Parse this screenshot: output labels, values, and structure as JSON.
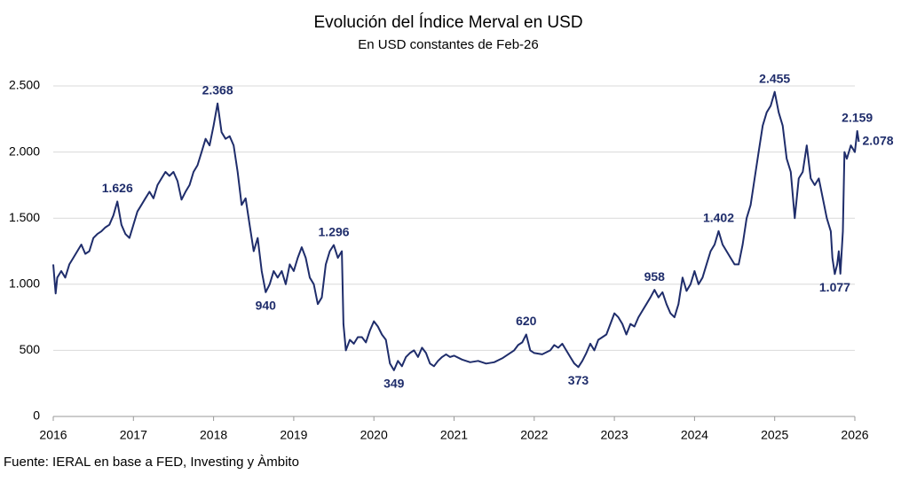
{
  "chart_data": {
    "type": "line",
    "title": "Evolución del Índice Merval en USD",
    "subtitle": "En USD constantes de Feb-26",
    "source": "Fuente: IERAL en base a FED, Investing y Àmbito",
    "xlim": [
      2016,
      2026
    ],
    "xticks": [
      2016,
      2017,
      2018,
      2019,
      2020,
      2021,
      2022,
      2023,
      2024,
      2025,
      2026
    ],
    "ylim": [
      0,
      2500
    ],
    "yticks": [
      0,
      500,
      {
        "value": 1000,
        "label": "1.000"
      },
      {
        "value": 1500,
        "label": "1.500"
      },
      {
        "value": 2000,
        "label": "2.000"
      },
      {
        "value": 2500,
        "label": "2.500"
      }
    ],
    "grid": true,
    "x": [
      2016.0,
      2016.03,
      2016.05,
      2016.1,
      2016.15,
      2016.2,
      2016.25,
      2016.3,
      2016.35,
      2016.4,
      2016.45,
      2016.5,
      2016.55,
      2016.6,
      2016.65,
      2016.7,
      2016.75,
      2016.8,
      2016.85,
      2016.9,
      2016.95,
      2017.0,
      2017.05,
      2017.1,
      2017.15,
      2017.2,
      2017.25,
      2017.3,
      2017.35,
      2017.4,
      2017.45,
      2017.5,
      2017.55,
      2017.6,
      2017.65,
      2017.7,
      2017.75,
      2017.8,
      2017.85,
      2017.9,
      2017.95,
      2018.0,
      2018.05,
      2018.1,
      2018.15,
      2018.2,
      2018.25,
      2018.3,
      2018.35,
      2018.4,
      2018.45,
      2018.5,
      2018.55,
      2018.6,
      2018.65,
      2018.7,
      2018.75,
      2018.8,
      2018.85,
      2018.9,
      2018.95,
      2019.0,
      2019.05,
      2019.1,
      2019.15,
      2019.2,
      2019.25,
      2019.3,
      2019.35,
      2019.4,
      2019.45,
      2019.5,
      2019.55,
      2019.6,
      2019.62,
      2019.65,
      2019.7,
      2019.75,
      2019.8,
      2019.85,
      2019.9,
      2019.95,
      2020.0,
      2020.05,
      2020.1,
      2020.15,
      2020.2,
      2020.25,
      2020.3,
      2020.35,
      2020.4,
      2020.45,
      2020.5,
      2020.55,
      2020.6,
      2020.65,
      2020.7,
      2020.75,
      2020.8,
      2020.85,
      2020.9,
      2020.95,
      2021.0,
      2021.1,
      2021.2,
      2021.3,
      2021.4,
      2021.5,
      2021.6,
      2021.7,
      2021.75,
      2021.8,
      2021.85,
      2021.9,
      2021.95,
      2022.0,
      2022.1,
      2022.2,
      2022.25,
      2022.3,
      2022.35,
      2022.4,
      2022.45,
      2022.5,
      2022.55,
      2022.6,
      2022.65,
      2022.7,
      2022.75,
      2022.8,
      2022.85,
      2022.9,
      2022.95,
      2023.0,
      2023.05,
      2023.1,
      2023.15,
      2023.2,
      2023.25,
      2023.3,
      2023.35,
      2023.4,
      2023.45,
      2023.5,
      2023.55,
      2023.6,
      2023.65,
      2023.7,
      2023.75,
      2023.8,
      2023.85,
      2023.9,
      2023.95,
      2024.0,
      2024.05,
      2024.1,
      2024.15,
      2024.2,
      2024.25,
      2024.3,
      2024.35,
      2024.4,
      2024.45,
      2024.5,
      2024.55,
      2024.6,
      2024.65,
      2024.7,
      2024.75,
      2024.8,
      2024.85,
      2024.9,
      2024.95,
      2025.0,
      2025.05,
      2025.1,
      2025.15,
      2025.2,
      2025.25,
      2025.3,
      2025.35,
      2025.4,
      2025.45,
      2025.5,
      2025.55,
      2025.6,
      2025.65,
      2025.7,
      2025.72,
      2025.75,
      2025.78,
      2025.8,
      2025.82,
      2025.85,
      2025.87,
      2025.9,
      2025.95,
      2026.0,
      2026.03,
      2026.05
    ],
    "series": [
      {
        "color": "#1f2d6b",
        "values": [
          1150,
          930,
          1050,
          1100,
          1050,
          1150,
          1200,
          1250,
          1300,
          1230,
          1250,
          1350,
          1380,
          1400,
          1430,
          1450,
          1520,
          1626,
          1450,
          1380,
          1350,
          1450,
          1550,
          1600,
          1650,
          1700,
          1650,
          1750,
          1800,
          1850,
          1820,
          1850,
          1780,
          1640,
          1700,
          1750,
          1850,
          1900,
          2000,
          2100,
          2050,
          2200,
          2368,
          2150,
          2100,
          2120,
          2050,
          1850,
          1600,
          1650,
          1450,
          1250,
          1350,
          1100,
          940,
          1000,
          1100,
          1050,
          1100,
          1000,
          1150,
          1100,
          1200,
          1280,
          1200,
          1050,
          1000,
          850,
          900,
          1150,
          1250,
          1296,
          1200,
          1250,
          700,
          500,
          580,
          550,
          600,
          600,
          560,
          650,
          720,
          680,
          620,
          580,
          400,
          349,
          420,
          380,
          450,
          480,
          500,
          450,
          520,
          480,
          400,
          380,
          420,
          450,
          470,
          450,
          460,
          430,
          410,
          420,
          400,
          410,
          440,
          480,
          500,
          540,
          560,
          620,
          500,
          480,
          470,
          500,
          540,
          520,
          550,
          500,
          450,
          400,
          373,
          420,
          480,
          550,
          500,
          580,
          600,
          620,
          700,
          780,
          750,
          700,
          620,
          700,
          680,
          750,
          800,
          850,
          900,
          958,
          900,
          940,
          850,
          780,
          750,
          850,
          1050,
          950,
          1000,
          1100,
          1000,
          1050,
          1150,
          1250,
          1300,
          1402,
          1300,
          1250,
          1200,
          1150,
          1150,
          1300,
          1500,
          1600,
          1800,
          2000,
          2200,
          2300,
          2350,
          2455,
          2300,
          2200,
          1950,
          1850,
          1500,
          1800,
          1850,
          2050,
          1800,
          1750,
          1800,
          1650,
          1500,
          1400,
          1200,
          1077,
          1150,
          1250,
          1080,
          1400,
          2000,
          1950,
          2050,
          2000,
          2159,
          2078
        ]
      }
    ],
    "annotations": [
      {
        "x": 2016.8,
        "value": 1626,
        "label": "1.626"
      },
      {
        "x": 2018.05,
        "value": 2368,
        "label": "2.368"
      },
      {
        "x": 2018.65,
        "value": 940,
        "label": "940"
      },
      {
        "x": 2019.5,
        "value": 1296,
        "label": "1.296"
      },
      {
        "x": 2020.25,
        "value": 349,
        "label": "349"
      },
      {
        "x": 2021.9,
        "value": 620,
        "label": "620"
      },
      {
        "x": 2022.55,
        "value": 373,
        "label": "373"
      },
      {
        "x": 2023.5,
        "value": 958,
        "label": "958"
      },
      {
        "x": 2024.3,
        "value": 1402,
        "label": "1.402"
      },
      {
        "x": 2025.0,
        "value": 2455,
        "label": "2.455"
      },
      {
        "x": 2025.75,
        "value": 1077,
        "label": "1.077"
      },
      {
        "x": 2026.03,
        "value": 2159,
        "label": "2.159"
      },
      {
        "x": 2026.05,
        "value": 2078,
        "label": "2.078"
      }
    ]
  }
}
